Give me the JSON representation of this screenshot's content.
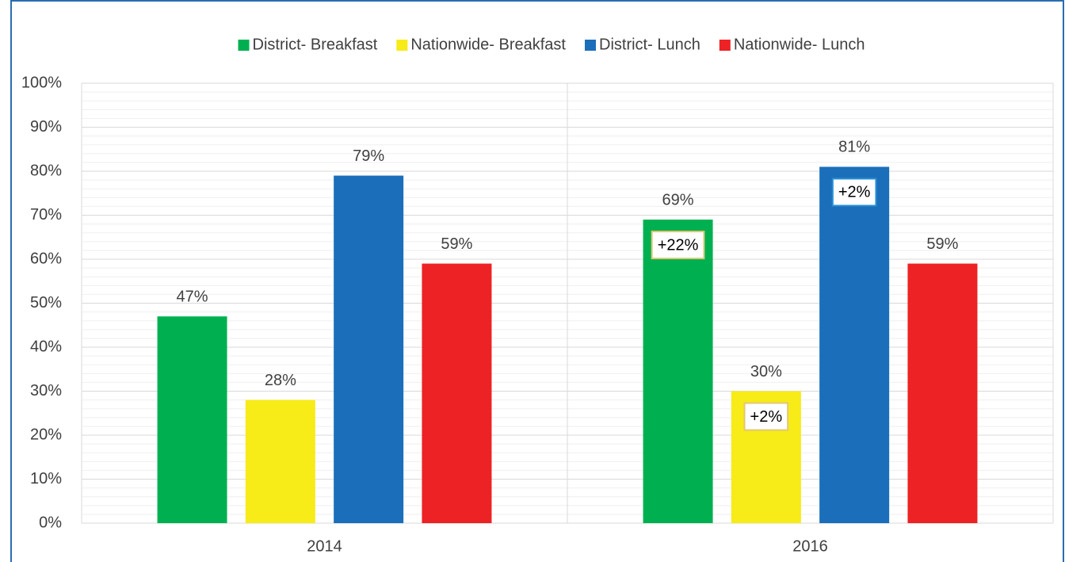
{
  "chart_data": {
    "type": "bar",
    "categories": [
      "2014",
      "2016"
    ],
    "series": [
      {
        "name": "District- Breakfast",
        "color": "#00b050",
        "values": [
          47,
          69
        ],
        "value_labels": [
          "47%",
          "69%"
        ],
        "annotations": [
          null,
          "+22%"
        ]
      },
      {
        "name": "Nationwide- Breakfast",
        "color": "#f7eb18",
        "values": [
          28,
          30
        ],
        "value_labels": [
          "28%",
          "30%"
        ],
        "annotations": [
          null,
          "+2%"
        ]
      },
      {
        "name": "District- Lunch",
        "color": "#1b6fba",
        "values": [
          79,
          81
        ],
        "value_labels": [
          "79%",
          "81%"
        ],
        "annotations": [
          null,
          "+2%"
        ]
      },
      {
        "name": "Nationwide- Lunch",
        "color": "#ed2224",
        "values": [
          59,
          59
        ],
        "value_labels": [
          "59%",
          "59%"
        ],
        "annotations": [
          null,
          null
        ]
      }
    ],
    "ylim": [
      0,
      100
    ],
    "yticks": [
      {
        "value": 0,
        "label": "0%"
      },
      {
        "value": 10,
        "label": "10%"
      },
      {
        "value": 20,
        "label": "20%"
      },
      {
        "value": 30,
        "label": "30%"
      },
      {
        "value": 40,
        "label": "40%"
      },
      {
        "value": 50,
        "label": "50%"
      },
      {
        "value": 60,
        "label": "60%"
      },
      {
        "value": 70,
        "label": "70%"
      },
      {
        "value": 80,
        "label": "80%"
      },
      {
        "value": 90,
        "label": "90%"
      },
      {
        "value": 100,
        "label": "100%"
      }
    ],
    "grid": true,
    "legend": "top"
  }
}
